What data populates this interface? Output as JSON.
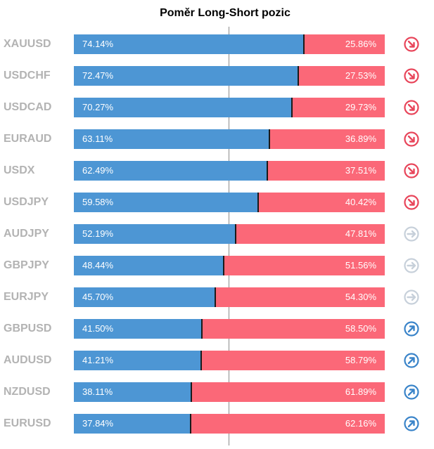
{
  "title": "Poměr Long-Short pozic",
  "chart_data": {
    "type": "bar",
    "title": "Poměr Long-Short pozic",
    "categories": [
      "XAUUSD",
      "USDCHF",
      "USDCAD",
      "EURAUD",
      "USDX",
      "USDJPY",
      "AUDJPY",
      "GBPJPY",
      "EURJPY",
      "GBPUSD",
      "AUDUSD",
      "NZDUSD",
      "EURUSD"
    ],
    "series": [
      {
        "values": [
          74.14,
          72.47,
          70.27,
          63.11,
          62.49,
          59.58,
          52.19,
          48.44,
          45.7,
          41.5,
          41.21,
          38.11,
          37.84
        ]
      },
      {
        "values": [
          25.86,
          27.53,
          29.73,
          36.89,
          37.51,
          40.42,
          47.81,
          51.56,
          54.3,
          58.5,
          58.79,
          61.89,
          62.16
        ]
      }
    ],
    "long_labels": [
      "74.14%",
      "72.47%",
      "70.27%",
      "63.11%",
      "62.49%",
      "59.58%",
      "52.19%",
      "48.44%",
      "45.70%",
      "41.50%",
      "41.21%",
      "38.11%",
      "37.84%"
    ],
    "short_labels": [
      "25.86%",
      "27.53%",
      "29.73%",
      "36.89%",
      "37.51%",
      "40.42%",
      "47.81%",
      "51.56%",
      "54.30%",
      "58.50%",
      "58.79%",
      "61.89%",
      "62.16%"
    ],
    "signals": [
      "down",
      "down",
      "down",
      "down",
      "down",
      "down",
      "neutral",
      "neutral",
      "neutral",
      "up",
      "up",
      "up",
      "up"
    ],
    "ylim": [
      0,
      100
    ],
    "colors": {
      "long": "#4d96d4",
      "short": "#fb6878",
      "down": "#e8455a",
      "neutral": "#c7d0da",
      "up": "#3a84c9"
    }
  }
}
